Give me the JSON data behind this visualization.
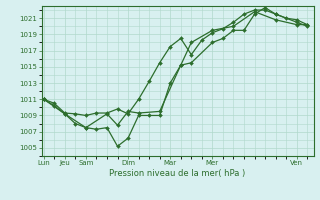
{
  "xlabel": "Pression niveau de la mer( hPa )",
  "background_color": "#d8f0f0",
  "grid_color": "#b0d8cc",
  "line_color": "#2d6e2d",
  "ylim": [
    1004,
    1022.5
  ],
  "yticks": [
    1005,
    1007,
    1009,
    1011,
    1013,
    1015,
    1017,
    1019,
    1021
  ],
  "x_major_positions": [
    0,
    1,
    2,
    4,
    6,
    8,
    12
  ],
  "x_major_labels": [
    "Lun",
    "Jeu",
    "Sam",
    "Dim",
    "Mar",
    "Mer",
    "Ven"
  ],
  "xlim": [
    -0.1,
    12.8
  ],
  "series1_x": [
    0,
    0.5,
    1.0,
    1.5,
    2.0,
    2.5,
    3.0,
    3.5,
    4.0,
    4.5,
    5.0,
    5.5,
    6.0,
    6.5,
    7.0,
    8.0,
    8.5,
    9.0,
    9.5,
    10.0,
    10.5,
    11.0,
    12.0,
    12.5
  ],
  "series1_y": [
    1011,
    1010.2,
    1009.2,
    1008.0,
    1007.5,
    1007.3,
    1007.5,
    1005.2,
    1006.2,
    1009.0,
    1009.0,
    1009.0,
    1013.0,
    1015.2,
    1015.5,
    1018.0,
    1018.5,
    1019.5,
    1019.5,
    1021.5,
    1022.3,
    1021.5,
    1020.5,
    1020.0
  ],
  "series2_x": [
    0,
    0.5,
    1.0,
    1.5,
    2.0,
    2.5,
    3.0,
    3.5,
    4.0,
    4.5,
    5.0,
    5.5,
    6.0,
    6.5,
    7.0,
    7.5,
    8.0,
    8.5,
    9.0,
    9.5,
    10.0,
    10.5,
    11.0,
    11.5,
    12.0,
    12.5
  ],
  "series2_y": [
    1011,
    1010.5,
    1009.3,
    1009.2,
    1009.0,
    1009.3,
    1009.3,
    1009.8,
    1009.2,
    1011.0,
    1013.2,
    1015.5,
    1017.5,
    1018.5,
    1016.5,
    1018.3,
    1019.2,
    1019.7,
    1020.5,
    1021.5,
    1022.0,
    1022.0,
    1021.5,
    1021.0,
    1020.8,
    1020.2
  ],
  "series3_x": [
    0,
    1.0,
    2.0,
    3.0,
    3.5,
    4.0,
    4.5,
    5.5,
    6.5,
    7.0,
    8.0,
    9.0,
    10.0,
    11.0,
    12.0,
    12.5
  ],
  "series3_y": [
    1011,
    1009.2,
    1007.5,
    1009.2,
    1007.8,
    1009.5,
    1009.3,
    1009.5,
    1015.2,
    1018.0,
    1019.5,
    1020.0,
    1021.8,
    1020.8,
    1020.2,
    1020.2
  ]
}
